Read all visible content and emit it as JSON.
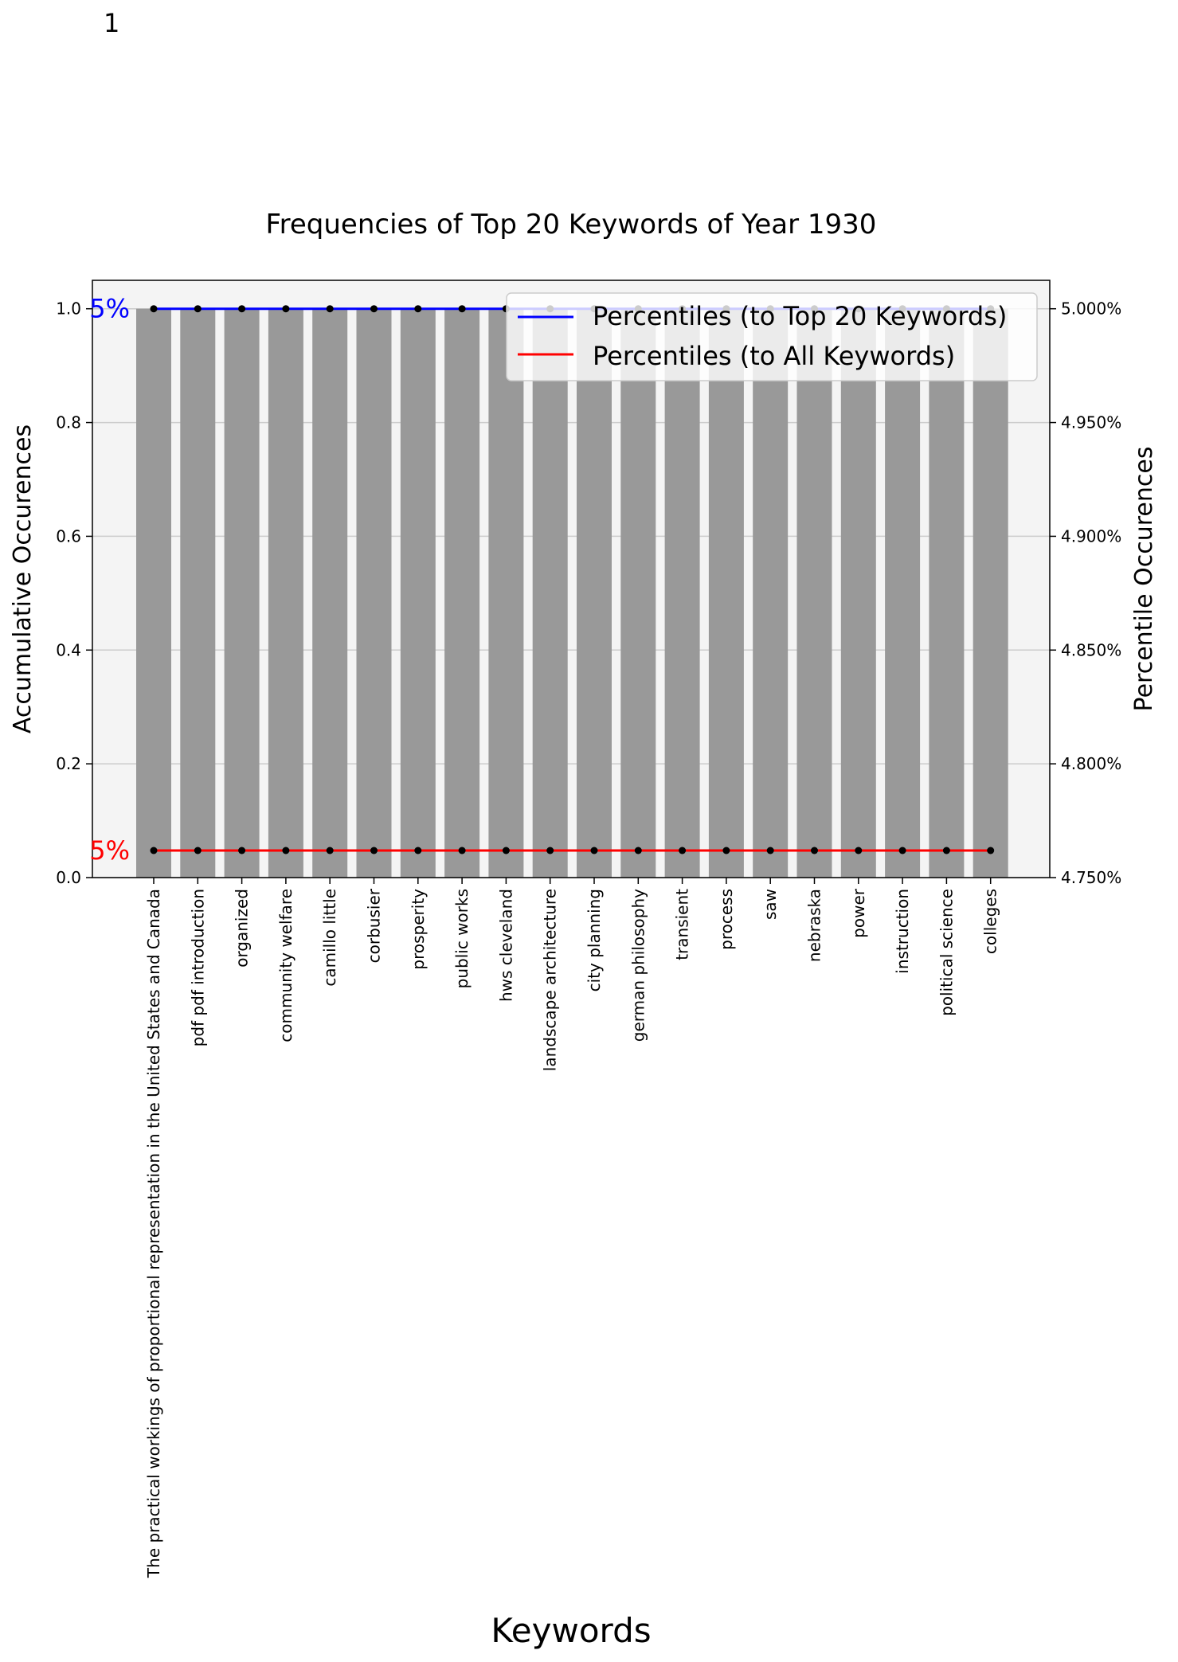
{
  "page_number": "1",
  "chart_data": {
    "type": "bar",
    "title": "Frequencies of Top 20 Keywords of Year 1930",
    "xlabel": "Keywords",
    "ylabel": "Accumulative Occurences",
    "y2label": "Percentile Occurences",
    "categories": [
      "The practical workings of proportional representation in the United States and Canada",
      "pdf pdf introduction",
      "organized",
      "community welfare",
      "camillo little",
      "corbusier",
      "prosperity",
      "public works",
      "hws cleveland",
      "landscape architecture",
      "city planning",
      "german philosophy",
      "transient",
      "process",
      "saw",
      "nebraska",
      "power",
      "instruction",
      "political science",
      "colleges"
    ],
    "values": [
      1,
      1,
      1,
      1,
      1,
      1,
      1,
      1,
      1,
      1,
      1,
      1,
      1,
      1,
      1,
      1,
      1,
      1,
      1,
      1
    ],
    "ylim": [
      0,
      1.05
    ],
    "yticks": [
      "0.0",
      "0.2",
      "0.4",
      "0.6",
      "0.8",
      "1.0"
    ],
    "y2lim": [
      4.75,
      5.0125
    ],
    "y2ticks": [
      "4.750%",
      "4.800%",
      "4.850%",
      "4.900%",
      "4.950%",
      "5.000%"
    ],
    "lines": [
      {
        "name": "Percentiles (to Top 20 Keywords)",
        "color": "#0000ff",
        "left_axis_value": 1.0,
        "edge_label": "5%"
      },
      {
        "name": "Percentiles (to All Keywords)",
        "color": "#ff0000",
        "left_axis_value": 0.0476,
        "edge_label": "5%"
      }
    ],
    "grid": true,
    "legend_position": "top-right",
    "bar_color": "#999999",
    "plot_background": "#f4f4f4"
  }
}
